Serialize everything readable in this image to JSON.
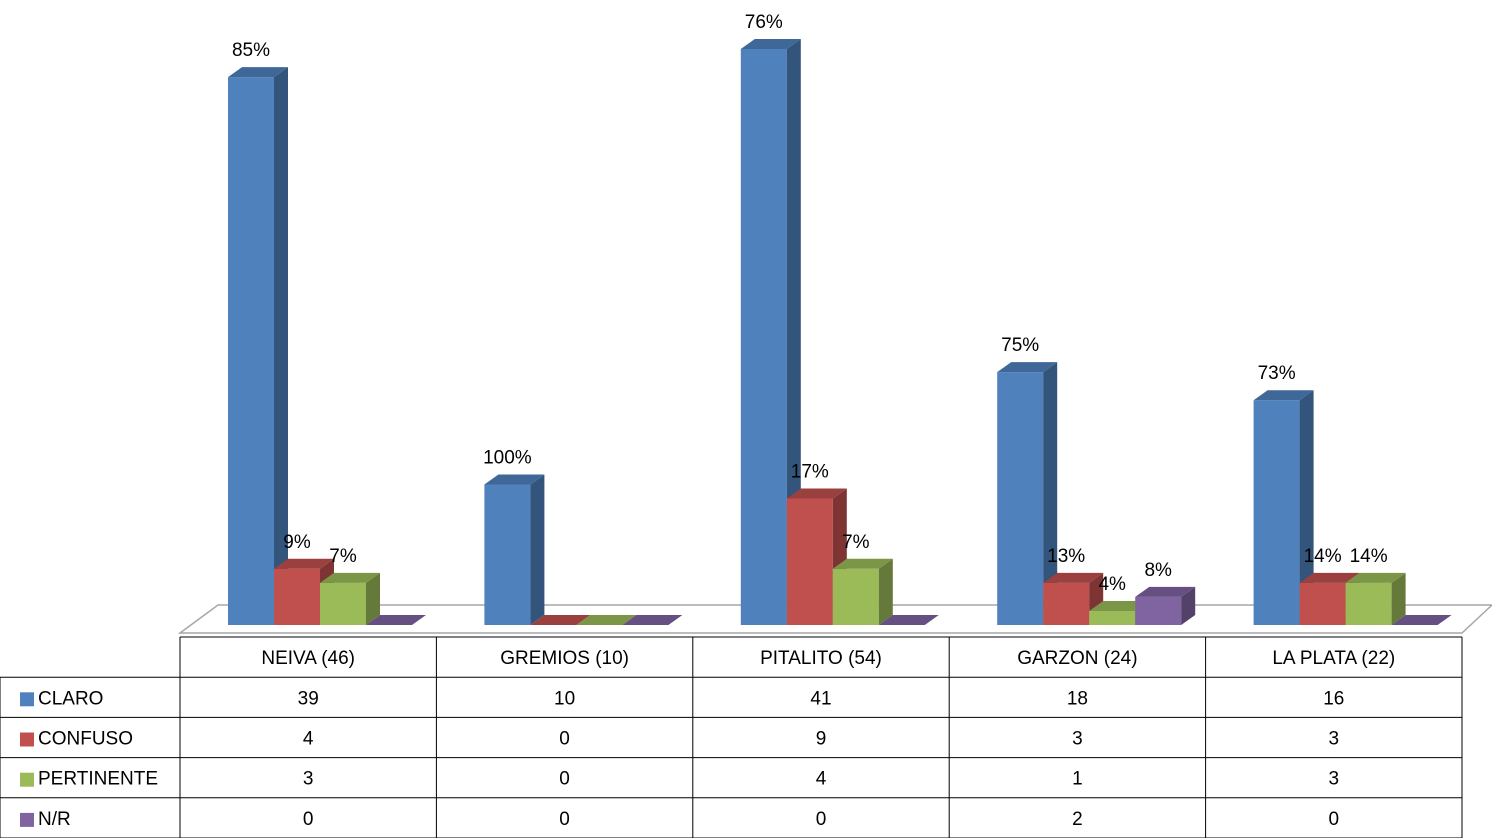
{
  "chart_data": {
    "type": "bar3d",
    "categories": [
      "NEIVA (46)",
      "GREMIOS (10)",
      "PITALITO (54)",
      "GARZON (24)",
      "LA PLATA (22)"
    ],
    "series": [
      {
        "name": "CLARO",
        "color": "#4f81bd",
        "values": [
          39,
          10,
          41,
          18,
          16
        ],
        "percent_labels": [
          "85%",
          "100%",
          "76%",
          "75%",
          "73%"
        ]
      },
      {
        "name": "CONFUSO",
        "color": "#c0504d",
        "values": [
          4,
          0,
          9,
          3,
          3
        ],
        "percent_labels": [
          "9%",
          null,
          "17%",
          "13%",
          "14%"
        ]
      },
      {
        "name": "PERTINENTE",
        "color": "#9bbb59",
        "values": [
          3,
          0,
          4,
          1,
          3
        ],
        "percent_labels": [
          "7%",
          null,
          "7%",
          "4%",
          "14%"
        ]
      },
      {
        "name": "N/R",
        "color": "#8064a2",
        "values": [
          0,
          0,
          0,
          2,
          0
        ],
        "percent_labels": [
          null,
          null,
          null,
          "8%",
          null
        ]
      }
    ]
  }
}
